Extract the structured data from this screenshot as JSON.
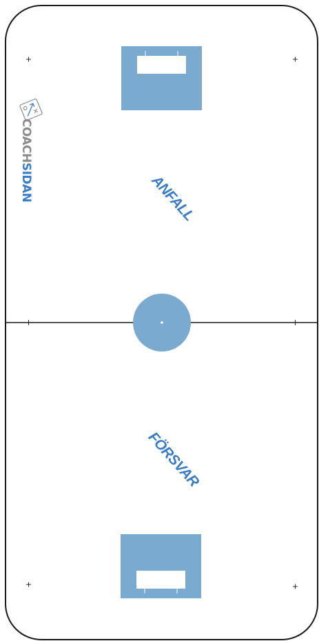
{
  "colors": {
    "board": "#1a1a1a",
    "area_fill": "#7aaad0",
    "label_blue": "#3a7cc6",
    "brand_grey": "#8a8a8a",
    "brand_blue": "#3a7cc6",
    "crease": "#ffffff"
  },
  "zones": {
    "attack_label": "ANFALL",
    "defense_label": "FÖRSVAR"
  },
  "brand": {
    "part1": "COACH",
    "part2": "SIDAN",
    "icon": "tactics-board-icon"
  }
}
